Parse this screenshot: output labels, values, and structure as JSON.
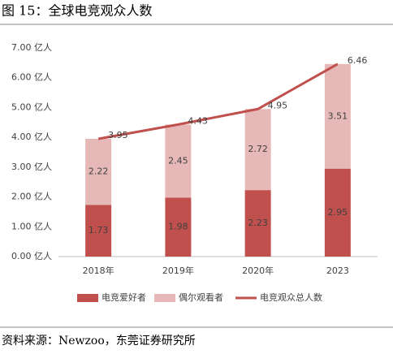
{
  "chart_data": {
    "type": "bar",
    "stacked": true,
    "title": "图 15：全球电竞观众人数",
    "source": "资料来源：Newzoo，东莞证券研究所",
    "categories": [
      "2018年",
      "2019年",
      "2020年",
      "2023"
    ],
    "series": [
      {
        "name": "电竞爱好者",
        "color": "#c0504d",
        "values": [
          1.73,
          1.98,
          2.23,
          2.95
        ]
      },
      {
        "name": "偶尔观看者",
        "color": "#e6b9b8",
        "values": [
          2.22,
          2.45,
          2.72,
          3.51
        ]
      },
      {
        "name": "电竞观众总人数",
        "type": "line",
        "color": "#c0504d",
        "values": [
          3.95,
          4.43,
          4.95,
          6.46
        ]
      }
    ],
    "ylim": [
      0,
      7
    ],
    "yticks": [
      {
        "value": 0,
        "label": "0.00 亿人"
      },
      {
        "value": 1,
        "label": "1.00 亿人"
      },
      {
        "value": 2,
        "label": "2.00 亿人"
      },
      {
        "value": 3,
        "label": "3.00 亿人"
      },
      {
        "value": 4,
        "label": "4.00 亿人"
      },
      {
        "value": 5,
        "label": "5.00 亿人"
      },
      {
        "value": 6,
        "label": "6.00 亿人"
      },
      {
        "value": 7,
        "label": "7.00 亿人"
      }
    ],
    "grid": false
  }
}
